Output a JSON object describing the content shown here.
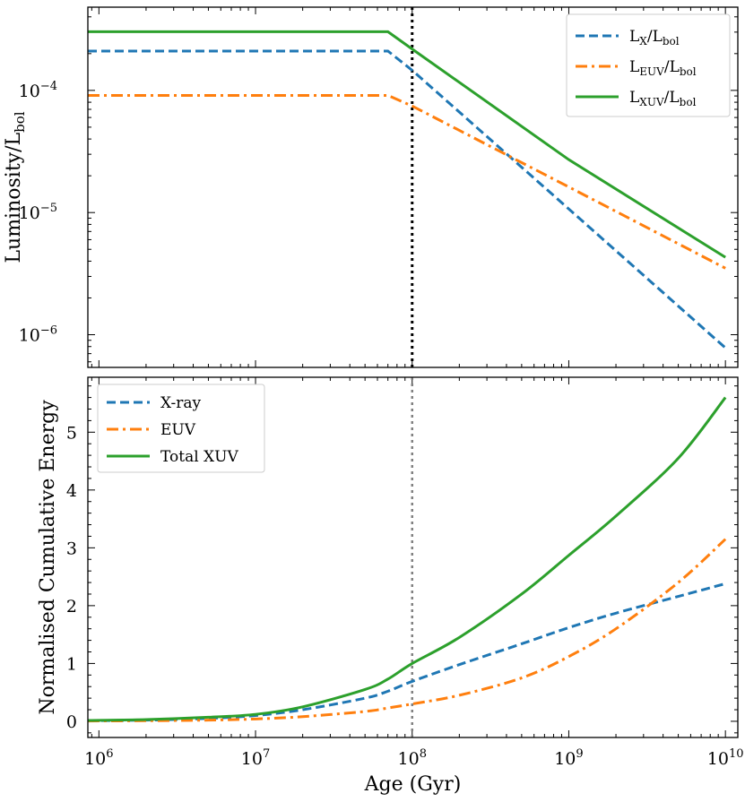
{
  "chart_data": [
    {
      "type": "line",
      "panel": "top",
      "xscale": "log",
      "yscale": "log",
      "xlim": [
        850000,
        12000000000
      ],
      "ylim": [
        5.4e-07,
        0.00048
      ],
      "ylabel": {
        "main": "Luminosity/L",
        "sub": "bol"
      },
      "xlabel": "",
      "vline": {
        "x": 100000000,
        "style": "dotted",
        "color": "#000000"
      },
      "ytick_labels": [
        {
          "value": 1e-06,
          "base": "10",
          "exp": "−6"
        },
        {
          "value": 1e-05,
          "base": "10",
          "exp": "−5"
        },
        {
          "value": 0.0001,
          "base": "10",
          "exp": "−4"
        }
      ],
      "legend_position": "top-right",
      "series": [
        {
          "name": "LX/Lbol",
          "label_main": "L",
          "label_sub": "X",
          "label_sep": "/L",
          "label_sub2": "bol",
          "color": "#1f77b4",
          "dash": "dashed",
          "x": [
            850000,
            70000000,
            100000000,
            1000000000,
            10000000000
          ],
          "y": [
            0.00021,
            0.00021,
            0.000146,
            1.07e-05,
            7.8e-07
          ]
        },
        {
          "name": "LEUV/Lbol",
          "label_main": "L",
          "label_sub": "EUV",
          "label_sep": "/L",
          "label_sub2": "bol",
          "color": "#ff7f0e",
          "dash": "dashdot",
          "x": [
            850000,
            70000000,
            100000000,
            1000000000,
            10000000000
          ],
          "y": [
            9.1e-05,
            9.1e-05,
            7.45e-05,
            1.62e-05,
            3.5e-06
          ]
        },
        {
          "name": "LXUV/Lbol",
          "label_main": "L",
          "label_sub": "XUV",
          "label_sep": "/L",
          "label_sub2": "bol",
          "color": "#2ca02c",
          "dash": "solid",
          "x": [
            850000,
            70000000,
            100000000,
            1000000000,
            10000000000
          ],
          "y": [
            0.000302,
            0.000302,
            0.000218,
            2.71e-05,
            4.3e-06
          ]
        }
      ]
    },
    {
      "type": "line",
      "panel": "bottom",
      "xscale": "log",
      "yscale": "linear",
      "xlim": [
        850000,
        12000000000
      ],
      "ylim": [
        -0.28,
        5.95
      ],
      "xlabel": "Age (Gyr)",
      "ylabel": "Normalised Cumulative Energy",
      "vline": {
        "x": 100000000,
        "style": "dotted",
        "color": "#808080"
      },
      "yticks": [
        0,
        1,
        2,
        3,
        4,
        5
      ],
      "xtick_labels": [
        {
          "value": 1000000,
          "base": "10",
          "exp": "6"
        },
        {
          "value": 10000000,
          "base": "10",
          "exp": "7"
        },
        {
          "value": 100000000,
          "base": "10",
          "exp": "8"
        },
        {
          "value": 1000000000,
          "base": "10",
          "exp": "9"
        },
        {
          "value": 10000000000,
          "base": "10",
          "exp": "10"
        }
      ],
      "legend_position": "top-left",
      "series": [
        {
          "name": "X-ray",
          "color": "#1f77b4",
          "dash": "dashed",
          "x": [
            850000,
            2000000,
            5000000,
            10000000,
            20000000,
            50000000,
            70000000,
            100000000,
            200000000,
            500000000,
            1000000000,
            2000000000,
            5000000000,
            10000000000
          ],
          "y": [
            0.01,
            0.02,
            0.05,
            0.1,
            0.2,
            0.4,
            0.52,
            0.69,
            0.98,
            1.34,
            1.62,
            1.87,
            2.16,
            2.38
          ]
        },
        {
          "name": "EUV",
          "color": "#ff7f0e",
          "dash": "dashdot",
          "x": [
            850000,
            2000000,
            5000000,
            10000000,
            20000000,
            50000000,
            70000000,
            100000000,
            200000000,
            500000000,
            1000000000,
            2000000000,
            5000000000,
            10000000000
          ],
          "y": [
            0.005,
            0.01,
            0.02,
            0.04,
            0.08,
            0.17,
            0.23,
            0.3,
            0.45,
            0.75,
            1.12,
            1.6,
            2.4,
            3.15
          ]
        },
        {
          "name": "Total XUV",
          "color": "#2ca02c",
          "dash": "solid",
          "x": [
            850000,
            2000000,
            5000000,
            10000000,
            20000000,
            50000000,
            70000000,
            100000000,
            200000000,
            500000000,
            1000000000,
            2000000000,
            5000000000,
            10000000000
          ],
          "y": [
            0.015,
            0.03,
            0.07,
            0.12,
            0.25,
            0.55,
            0.73,
            1.0,
            1.45,
            2.2,
            2.87,
            3.55,
            4.55,
            5.6
          ]
        }
      ]
    }
  ]
}
